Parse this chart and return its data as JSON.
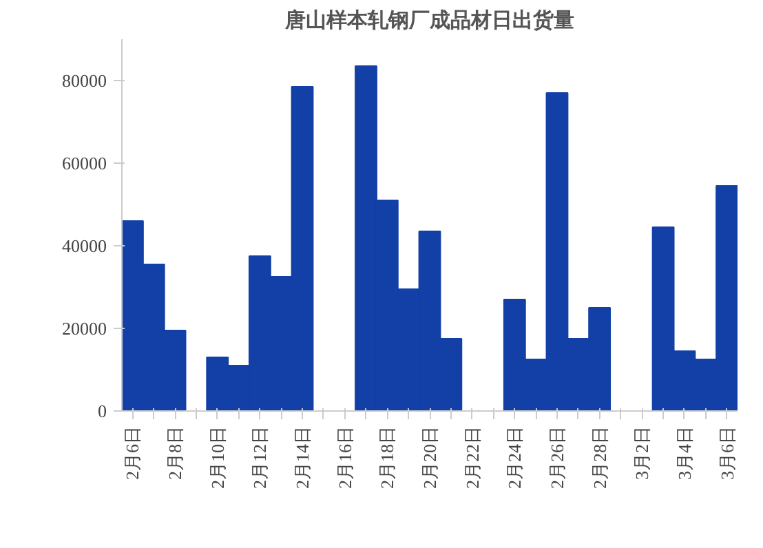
{
  "chart_data": {
    "type": "bar",
    "title": "唐山样本轧钢厂成品材日出货量",
    "categories": [
      "2月6日",
      null,
      "2月8日",
      null,
      "2月10日",
      null,
      "2月12日",
      null,
      "2月14日",
      null,
      "2月16日",
      null,
      "2月18日",
      null,
      "2月20日",
      null,
      "2月22日",
      null,
      "2月24日",
      null,
      "2月26日",
      null,
      "2月28日",
      null,
      "3月2日",
      null,
      "3月4日",
      null,
      "3月6日"
    ],
    "values": [
      46000,
      35500,
      19500,
      null,
      13000,
      11000,
      37500,
      32500,
      78500,
      null,
      null,
      83500,
      51000,
      29500,
      43500,
      17500,
      null,
      null,
      27000,
      12500,
      77000,
      17500,
      25000,
      null,
      null,
      44500,
      14500,
      12500,
      54500
    ],
    "color": "#1240a6",
    "ylim": [
      0,
      90000
    ],
    "yticks": [
      0,
      20000,
      40000,
      60000,
      80000
    ],
    "grid": false
  }
}
